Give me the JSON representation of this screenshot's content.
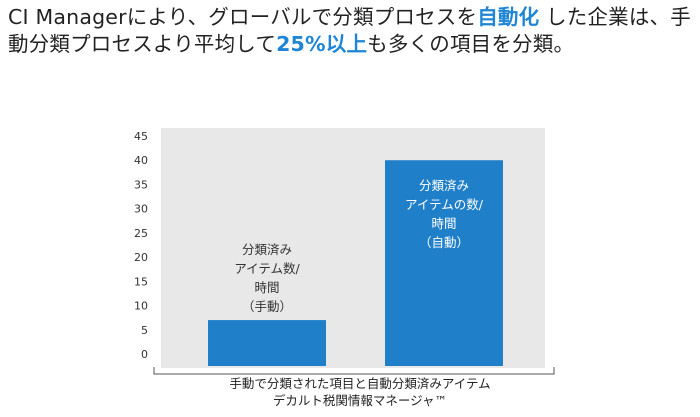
{
  "headline": {
    "line1_part1": "CI Managerにより、グローバルで分類プロセスを",
    "line1_highlight": "自動化",
    "line1_part2": " した企業は、手",
    "line2_part1": "動分類プロセスより平均して",
    "line2_highlight": "25%以上",
    "line2_part2": "も多くの項目を分類。"
  },
  "colors": {
    "bar": "#1f7fc9",
    "highlight": "#1f86d6",
    "panel": "#e8e8e8"
  },
  "chart_data": {
    "type": "bar",
    "categories": [
      "分類済み アイテム数/ 時間 (手動)",
      "分類済み アイテムの数/ 時間 (自動)"
    ],
    "values": [
      7,
      40
    ],
    "ylim": [
      0,
      45
    ],
    "yticks": [
      "0",
      "5",
      "10",
      "15",
      "20",
      "25",
      "30",
      "35",
      "40",
      "45"
    ],
    "bar_labels": [
      [
        "分類済み",
        "アイテム数/",
        "時間",
        "（手動）"
      ],
      [
        "分類済み",
        "アイテムの数/",
        "時間",
        "（自動）"
      ]
    ],
    "xlabel_lines": [
      "手動で分類された項目と自動分類済みアイテム",
      "デカルト税関情報マネージャ™"
    ],
    "grid": false,
    "legend": "none"
  }
}
